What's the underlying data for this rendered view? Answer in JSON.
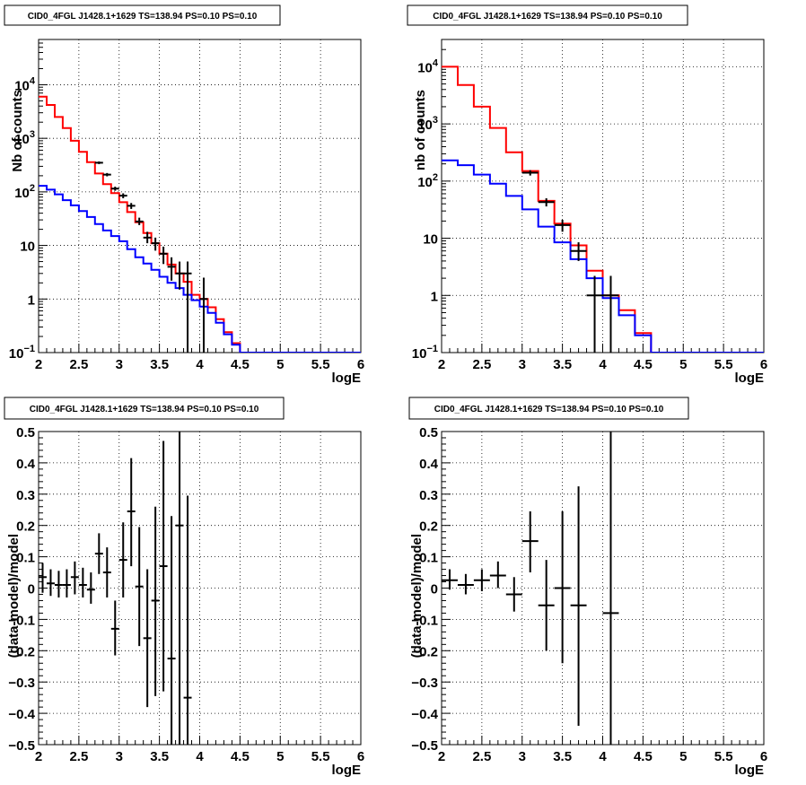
{
  "chart_data": [
    {
      "type": "line",
      "title": "CID0_4FGL J1428.1+1629 TS=138.94 PS=0.10 PS=0.10",
      "xlabel": "logE",
      "ylabel": "Nb of counts",
      "xlim": [
        2,
        6
      ],
      "ylim": [
        0.1,
        70000
      ],
      "yscale": "log",
      "grid": true,
      "x_ticks": [
        "2",
        "2.5",
        "3",
        "3.5",
        "4",
        "4.5",
        "5",
        "5.5",
        "6"
      ],
      "y_ticks": [
        {
          "v": 0.1,
          "base": "10",
          "exp": "−1"
        },
        {
          "v": 1,
          "text": "1"
        },
        {
          "v": 10,
          "text": "10"
        },
        {
          "v": 100,
          "base": "10",
          "exp": "2"
        },
        {
          "v": 1000,
          "base": "10",
          "exp": "3"
        },
        {
          "v": 10000,
          "base": "10",
          "exp": "4"
        }
      ],
      "series": [
        {
          "color": "#ff0000",
          "step_width": 0.1,
          "x": [
            2.0,
            2.1,
            2.2,
            2.3,
            2.4,
            2.5,
            2.6,
            2.7,
            2.8,
            2.9,
            3.0,
            3.1,
            3.2,
            3.3,
            3.4,
            3.5,
            3.6,
            3.7,
            3.8,
            3.9,
            4.0,
            4.1,
            4.2,
            4.3,
            4.4,
            4.5,
            4.6,
            4.7,
            4.8,
            4.9,
            5.0,
            5.1,
            5.2,
            5.3,
            5.4,
            5.5,
            5.6,
            5.7,
            5.8,
            5.9
          ],
          "y": [
            6000,
            4200,
            2500,
            1550,
            900,
            560,
            360,
            220,
            140,
            95,
            64,
            42,
            27,
            17,
            11,
            7,
            4.4,
            3.0,
            2.1,
            1.2,
            1.0,
            0.7,
            0.42,
            0.24,
            0.15,
            0.1,
            0.1,
            0.1,
            0.1,
            0.1,
            0.1,
            0.1,
            0.1,
            0.1,
            0.1,
            0.1,
            0.1,
            0.1,
            0.1,
            0.1
          ]
        },
        {
          "color": "#0000ff",
          "step_width": 0.1,
          "x": [
            2.0,
            2.1,
            2.2,
            2.3,
            2.4,
            2.5,
            2.6,
            2.7,
            2.8,
            2.9,
            3.0,
            3.1,
            3.2,
            3.3,
            3.4,
            3.5,
            3.6,
            3.7,
            3.8,
            3.9,
            4.0,
            4.1,
            4.2,
            4.3,
            4.4,
            4.5,
            4.6,
            4.7,
            4.8,
            4.9,
            5.0,
            5.1,
            5.2,
            5.3,
            5.4,
            5.5,
            5.6,
            5.7,
            5.8,
            5.9
          ],
          "y": [
            130,
            110,
            90,
            70,
            56,
            44,
            34,
            25,
            19,
            15,
            12,
            8.5,
            6,
            4.6,
            3.5,
            2.6,
            2.0,
            1.6,
            1.2,
            0.95,
            0.72,
            0.55,
            0.36,
            0.22,
            0.14,
            0.1,
            0.1,
            0.1,
            0.1,
            0.1,
            0.1,
            0.1,
            0.1,
            0.1,
            0.1,
            0.1,
            0.1,
            0.1,
            0.1,
            0.1
          ]
        }
      ],
      "points": [
        {
          "x": 2.75,
          "y": 350,
          "xerr": 0.05,
          "lo": 330,
          "hi": 370
        },
        {
          "x": 2.85,
          "y": 210,
          "xerr": 0.05,
          "lo": 195,
          "hi": 225
        },
        {
          "x": 2.95,
          "y": 115,
          "xerr": 0.05,
          "lo": 105,
          "hi": 125
        },
        {
          "x": 3.05,
          "y": 85,
          "xerr": 0.05,
          "lo": 76,
          "hi": 94
        },
        {
          "x": 3.15,
          "y": 55,
          "xerr": 0.05,
          "lo": 48,
          "hi": 62
        },
        {
          "x": 3.25,
          "y": 28,
          "xerr": 0.05,
          "lo": 24,
          "hi": 33
        },
        {
          "x": 3.35,
          "y": 14,
          "xerr": 0.05,
          "lo": 11,
          "hi": 18
        },
        {
          "x": 3.45,
          "y": 11,
          "xerr": 0.05,
          "lo": 8,
          "hi": 14
        },
        {
          "x": 3.55,
          "y": 7,
          "xerr": 0.05,
          "lo": 4.5,
          "hi": 9.5
        },
        {
          "x": 3.65,
          "y": 4,
          "xerr": 0.05,
          "lo": 2.2,
          "hi": 6
        },
        {
          "x": 3.75,
          "y": 3,
          "xerr": 0.05,
          "lo": 1.5,
          "hi": 5
        },
        {
          "x": 3.85,
          "y": 3,
          "xerr": 0.05,
          "lo": 0.1,
          "hi": 5
        },
        {
          "x": 4.05,
          "y": 1,
          "xerr": 0.05,
          "lo": 0.1,
          "hi": 2.5
        }
      ]
    },
    {
      "type": "line",
      "title": "CID0_4FGL J1428.1+1629 TS=138.94 PS=0.10 PS=0.10",
      "xlabel": "logE",
      "ylabel": "nb of counts",
      "xlim": [
        2,
        6
      ],
      "ylim": [
        0.1,
        30000
      ],
      "yscale": "log",
      "grid": true,
      "x_ticks": [
        "2",
        "2.5",
        "3",
        "3.5",
        "4",
        "4.5",
        "5",
        "5.5",
        "6"
      ],
      "y_ticks": [
        {
          "v": 0.1,
          "base": "10",
          "exp": "−1"
        },
        {
          "v": 1,
          "text": "1"
        },
        {
          "v": 10,
          "text": "10"
        },
        {
          "v": 100,
          "base": "10",
          "exp": "2"
        },
        {
          "v": 1000,
          "base": "10",
          "exp": "3"
        },
        {
          "v": 10000,
          "base": "10",
          "exp": "4"
        }
      ],
      "series": [
        {
          "color": "#ff0000",
          "step_width": 0.2,
          "x": [
            2.0,
            2.2,
            2.4,
            2.6,
            2.8,
            3.0,
            3.2,
            3.4,
            3.6,
            3.8,
            4.0,
            4.2,
            4.4,
            4.6,
            4.8,
            5.0,
            5.2,
            5.4,
            5.6,
            5.8
          ],
          "y": [
            10000,
            4800,
            2000,
            850,
            320,
            150,
            45,
            18,
            7.5,
            2.7,
            1.0,
            0.55,
            0.22,
            0.1,
            0.1,
            0.1,
            0.1,
            0.1,
            0.1,
            0.1
          ]
        },
        {
          "color": "#0000ff",
          "step_width": 0.2,
          "x": [
            2.0,
            2.2,
            2.4,
            2.6,
            2.8,
            3.0,
            3.2,
            3.4,
            3.6,
            3.8,
            4.0,
            4.2,
            4.4,
            4.6,
            4.8,
            5.0,
            5.2,
            5.4,
            5.6,
            5.8
          ],
          "y": [
            230,
            190,
            130,
            90,
            55,
            32,
            16,
            8.5,
            4.3,
            2.0,
            0.9,
            0.45,
            0.2,
            0.1,
            0.1,
            0.1,
            0.1,
            0.1,
            0.1,
            0.1
          ]
        }
      ],
      "points": [
        {
          "x": 3.1,
          "y": 140,
          "xerr": 0.1,
          "lo": 125,
          "hi": 155
        },
        {
          "x": 3.3,
          "y": 43,
          "xerr": 0.1,
          "lo": 36,
          "hi": 50
        },
        {
          "x": 3.5,
          "y": 17,
          "xerr": 0.1,
          "lo": 13,
          "hi": 21
        },
        {
          "x": 3.7,
          "y": 6,
          "xerr": 0.1,
          "lo": 4,
          "hi": 8.5
        },
        {
          "x": 3.9,
          "y": 1,
          "xerr": 0.1,
          "lo": 0.1,
          "hi": 2.2
        },
        {
          "x": 4.1,
          "y": 1,
          "xerr": 0.1,
          "lo": 0.1,
          "hi": 2.2
        }
      ]
    },
    {
      "type": "scatter",
      "title": "CID0_4FGL J1428.1+1629 TS=138.94 PS=0.10 PS=0.10",
      "xlabel": "logE",
      "ylabel": "(data-model)/model",
      "xlim": [
        2,
        6
      ],
      "ylim": [
        -0.5,
        0.5
      ],
      "yscale": "linear",
      "grid": true,
      "x_ticks": [
        "2",
        "2.5",
        "3",
        "3.5",
        "4",
        "4.5",
        "5",
        "5.5",
        "6"
      ],
      "y_ticks": [
        {
          "v": -0.5,
          "text": "−0.5"
        },
        {
          "v": -0.4,
          "text": "−0.4"
        },
        {
          "v": -0.3,
          "text": "−0.3"
        },
        {
          "v": -0.2,
          "text": "−0.2"
        },
        {
          "v": -0.1,
          "text": "−0.1"
        },
        {
          "v": 0,
          "text": "0"
        },
        {
          "v": 0.1,
          "text": "0.1"
        },
        {
          "v": 0.2,
          "text": "0.2"
        },
        {
          "v": 0.3,
          "text": "0.3"
        },
        {
          "v": 0.4,
          "text": "0.4"
        },
        {
          "v": 0.5,
          "text": "0.5"
        }
      ],
      "series": [],
      "points": [
        {
          "x": 2.05,
          "y": 0.035,
          "xerr": 0.05,
          "lo": -0.015,
          "hi": 0.08
        },
        {
          "x": 2.15,
          "y": 0.015,
          "xerr": 0.05,
          "lo": -0.025,
          "hi": 0.06
        },
        {
          "x": 2.25,
          "y": 0.01,
          "xerr": 0.05,
          "lo": -0.03,
          "hi": 0.055
        },
        {
          "x": 2.35,
          "y": 0.01,
          "xerr": 0.05,
          "lo": -0.03,
          "hi": 0.06
        },
        {
          "x": 2.45,
          "y": 0.035,
          "xerr": 0.05,
          "lo": -0.02,
          "hi": 0.085
        },
        {
          "x": 2.55,
          "y": 0.01,
          "xerr": 0.05,
          "lo": -0.03,
          "hi": 0.065
        },
        {
          "x": 2.65,
          "y": -0.005,
          "xerr": 0.05,
          "lo": -0.05,
          "hi": 0.05
        },
        {
          "x": 2.75,
          "y": 0.11,
          "xerr": 0.05,
          "lo": 0.045,
          "hi": 0.175
        },
        {
          "x": 2.85,
          "y": 0.05,
          "xerr": 0.05,
          "lo": -0.03,
          "hi": 0.13
        },
        {
          "x": 2.95,
          "y": -0.13,
          "xerr": 0.05,
          "lo": -0.215,
          "hi": -0.04
        },
        {
          "x": 3.05,
          "y": 0.09,
          "xerr": 0.05,
          "lo": -0.03,
          "hi": 0.21
        },
        {
          "x": 3.15,
          "y": 0.245,
          "xerr": 0.05,
          "lo": 0.07,
          "hi": 0.415
        },
        {
          "x": 3.25,
          "y": 0.005,
          "xerr": 0.05,
          "lo": -0.185,
          "hi": 0.195
        },
        {
          "x": 3.35,
          "y": -0.16,
          "xerr": 0.05,
          "lo": -0.38,
          "hi": 0.06
        },
        {
          "x": 3.45,
          "y": -0.04,
          "xerr": 0.05,
          "lo": -0.345,
          "hi": 0.26
        },
        {
          "x": 3.55,
          "y": 0.07,
          "xerr": 0.05,
          "lo": -0.33,
          "hi": 0.47
        },
        {
          "x": 3.65,
          "y": -0.225,
          "xerr": 0.05,
          "lo": -0.5,
          "hi": 0.23
        },
        {
          "x": 3.75,
          "y": 0.2,
          "xerr": 0.05,
          "lo": -0.5,
          "hi": 0.5
        },
        {
          "x": 3.85,
          "y": -0.35,
          "xerr": 0.05,
          "lo": -0.5,
          "hi": 0.295
        }
      ]
    },
    {
      "type": "scatter",
      "title": "CID0_4FGL J1428.1+1629 TS=138.94 PS=0.10 PS=0.10",
      "xlabel": "logE",
      "ylabel": "(data-model)/model",
      "xlim": [
        2,
        6
      ],
      "ylim": [
        -0.5,
        0.5
      ],
      "yscale": "linear",
      "grid": true,
      "x_ticks": [
        "2",
        "2.5",
        "3",
        "3.5",
        "4",
        "4.5",
        "5",
        "5.5",
        "6"
      ],
      "y_ticks": [
        {
          "v": -0.5,
          "text": "−0.5"
        },
        {
          "v": -0.4,
          "text": "−0.4"
        },
        {
          "v": -0.3,
          "text": "−0.3"
        },
        {
          "v": -0.2,
          "text": "−0.2"
        },
        {
          "v": -0.1,
          "text": "−0.1"
        },
        {
          "v": 0,
          "text": "0"
        },
        {
          "v": 0.1,
          "text": "0.1"
        },
        {
          "v": 0.2,
          "text": "0.2"
        },
        {
          "v": 0.3,
          "text": "0.3"
        },
        {
          "v": 0.4,
          "text": "0.4"
        },
        {
          "v": 0.5,
          "text": "0.5"
        }
      ],
      "series": [],
      "points": [
        {
          "x": 2.1,
          "y": 0.025,
          "xerr": 0.1,
          "lo": -0.005,
          "hi": 0.06
        },
        {
          "x": 2.3,
          "y": 0.01,
          "xerr": 0.1,
          "lo": -0.02,
          "hi": 0.045
        },
        {
          "x": 2.5,
          "y": 0.025,
          "xerr": 0.1,
          "lo": -0.01,
          "hi": 0.06
        },
        {
          "x": 2.7,
          "y": 0.04,
          "xerr": 0.1,
          "lo": 0.0,
          "hi": 0.085
        },
        {
          "x": 2.9,
          "y": -0.02,
          "xerr": 0.1,
          "lo": -0.075,
          "hi": 0.035
        },
        {
          "x": 3.1,
          "y": 0.15,
          "xerr": 0.1,
          "lo": 0.05,
          "hi": 0.245
        },
        {
          "x": 3.3,
          "y": -0.055,
          "xerr": 0.1,
          "lo": -0.2,
          "hi": 0.09
        },
        {
          "x": 3.5,
          "y": 0.0,
          "xerr": 0.1,
          "lo": -0.24,
          "hi": 0.245
        },
        {
          "x": 3.7,
          "y": -0.055,
          "xerr": 0.1,
          "lo": -0.44,
          "hi": 0.325
        },
        {
          "x": 4.1,
          "y": -0.08,
          "xerr": 0.1,
          "lo": -0.5,
          "hi": 0.5
        }
      ]
    }
  ]
}
